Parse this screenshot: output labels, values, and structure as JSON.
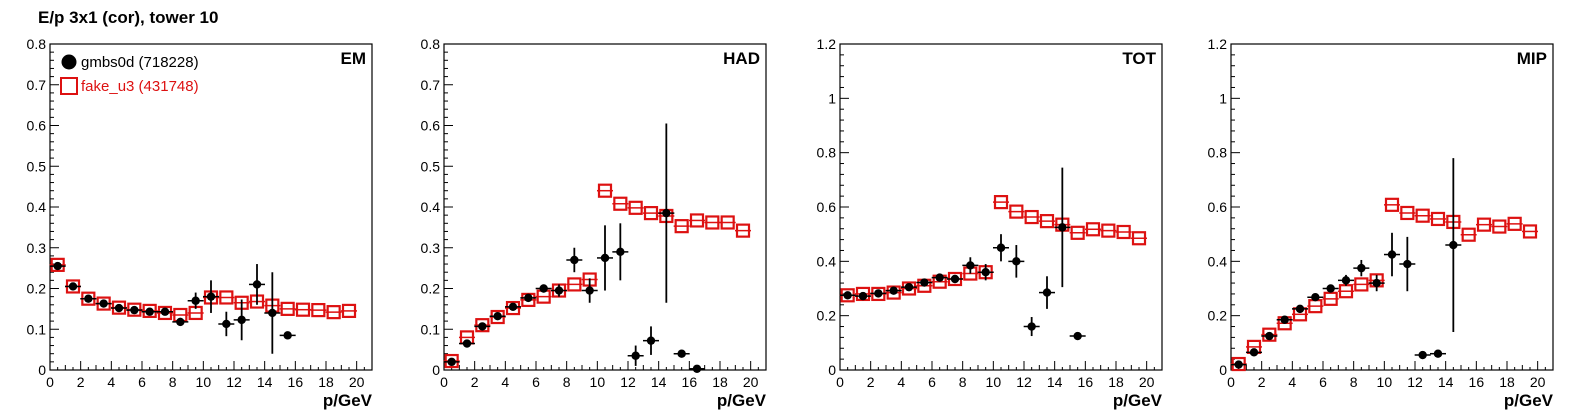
{
  "page": {
    "title": "E/p 3x1 (cor), tower 10"
  },
  "colors": {
    "data": "#000000",
    "mc": "#dd1111",
    "axis": "#000000"
  },
  "legend": [
    {
      "label": "gmbs0d (718228)",
      "color": "#000000",
      "marker": "filled-circle"
    },
    {
      "label": "fake_u3 (431748)",
      "color": "#dd1111",
      "marker": "open-square"
    }
  ],
  "chart_data": [
    {
      "type": "scatter",
      "label": "EM",
      "xlabel": "p/GeV",
      "ylabel": "",
      "xlim": [
        0,
        21
      ],
      "ylim": [
        0,
        0.8
      ],
      "xticks": [
        0,
        2,
        4,
        6,
        8,
        10,
        12,
        14,
        16,
        18,
        20
      ],
      "yticks": [
        0,
        0.1,
        0.2,
        0.3,
        0.4,
        0.5,
        0.6,
        0.7,
        0.8
      ],
      "ytick_labels": [
        "0",
        "0.1",
        "0.2",
        "0.3",
        "0.4",
        "0.5",
        "0.6",
        "0.7",
        "0.8"
      ],
      "series": [
        {
          "name": "gmbs0d (718228)",
          "marker": "filled-circle",
          "points": [
            {
              "x": 0.5,
              "y": 0.255,
              "err": 0.005
            },
            {
              "x": 1.5,
              "y": 0.205,
              "err": 0.005
            },
            {
              "x": 2.5,
              "y": 0.175,
              "err": 0.005
            },
            {
              "x": 3.5,
              "y": 0.163,
              "err": 0.005
            },
            {
              "x": 4.5,
              "y": 0.152,
              "err": 0.005
            },
            {
              "x": 5.5,
              "y": 0.147,
              "err": 0.006
            },
            {
              "x": 6.5,
              "y": 0.143,
              "err": 0.006
            },
            {
              "x": 7.5,
              "y": 0.143,
              "err": 0.008
            },
            {
              "x": 8.5,
              "y": 0.118,
              "err": 0.01
            },
            {
              "x": 9.5,
              "y": 0.17,
              "err": 0.02
            },
            {
              "x": 10.5,
              "y": 0.18,
              "err": 0.04
            },
            {
              "x": 11.5,
              "y": 0.113,
              "err": 0.03
            },
            {
              "x": 12.5,
              "y": 0.123,
              "err": 0.05
            },
            {
              "x": 13.5,
              "y": 0.21,
              "err": 0.05
            },
            {
              "x": 14.5,
              "y": 0.14,
              "err": 0.1
            },
            {
              "x": 15.5,
              "y": 0.085,
              "err": 0.005
            }
          ]
        },
        {
          "name": "fake_u3 (431748)",
          "marker": "open-square",
          "points": [
            {
              "x": 0.5,
              "y": 0.258
            },
            {
              "x": 1.5,
              "y": 0.205
            },
            {
              "x": 2.5,
              "y": 0.175
            },
            {
              "x": 3.5,
              "y": 0.163
            },
            {
              "x": 4.5,
              "y": 0.153
            },
            {
              "x": 5.5,
              "y": 0.148
            },
            {
              "x": 6.5,
              "y": 0.145
            },
            {
              "x": 7.5,
              "y": 0.14
            },
            {
              "x": 8.5,
              "y": 0.135
            },
            {
              "x": 9.5,
              "y": 0.14
            },
            {
              "x": 10.5,
              "y": 0.178
            },
            {
              "x": 11.5,
              "y": 0.178
            },
            {
              "x": 12.5,
              "y": 0.165
            },
            {
              "x": 13.5,
              "y": 0.168
            },
            {
              "x": 14.5,
              "y": 0.158
            },
            {
              "x": 15.5,
              "y": 0.15
            },
            {
              "x": 16.5,
              "y": 0.148
            },
            {
              "x": 17.5,
              "y": 0.147
            },
            {
              "x": 18.5,
              "y": 0.142
            },
            {
              "x": 19.5,
              "y": 0.145
            }
          ]
        }
      ]
    },
    {
      "type": "scatter",
      "label": "HAD",
      "xlabel": "p/GeV",
      "ylabel": "",
      "xlim": [
        0,
        21
      ],
      "ylim": [
        0,
        0.8
      ],
      "xticks": [
        0,
        2,
        4,
        6,
        8,
        10,
        12,
        14,
        16,
        18,
        20
      ],
      "yticks": [
        0,
        0.1,
        0.2,
        0.3,
        0.4,
        0.5,
        0.6,
        0.7,
        0.8
      ],
      "ytick_labels": [
        "0",
        "0.1",
        "0.2",
        "0.3",
        "0.4",
        "0.5",
        "0.6",
        "0.7",
        "0.8"
      ],
      "series": [
        {
          "name": "gmbs0d (718228)",
          "marker": "filled-circle",
          "points": [
            {
              "x": 0.5,
              "y": 0.02,
              "err": 0.004
            },
            {
              "x": 1.5,
              "y": 0.065,
              "err": 0.005
            },
            {
              "x": 2.5,
              "y": 0.107,
              "err": 0.005
            },
            {
              "x": 3.5,
              "y": 0.132,
              "err": 0.005
            },
            {
              "x": 4.5,
              "y": 0.155,
              "err": 0.006
            },
            {
              "x": 5.5,
              "y": 0.177,
              "err": 0.007
            },
            {
              "x": 6.5,
              "y": 0.2,
              "err": 0.01
            },
            {
              "x": 7.5,
              "y": 0.195,
              "err": 0.015
            },
            {
              "x": 8.5,
              "y": 0.27,
              "err": 0.03
            },
            {
              "x": 9.5,
              "y": 0.195,
              "err": 0.03
            },
            {
              "x": 10.5,
              "y": 0.275,
              "err": 0.08
            },
            {
              "x": 11.5,
              "y": 0.29,
              "err": 0.07
            },
            {
              "x": 12.5,
              "y": 0.035,
              "err": 0.025
            },
            {
              "x": 13.5,
              "y": 0.072,
              "err": 0.035
            },
            {
              "x": 14.5,
              "y": 0.385,
              "err": 0.22
            },
            {
              "x": 15.5,
              "y": 0.04,
              "err": 0.004
            },
            {
              "x": 16.5,
              "y": 0.003,
              "err": 0.003
            }
          ]
        },
        {
          "name": "fake_u3 (431748)",
          "marker": "open-square",
          "points": [
            {
              "x": 0.5,
              "y": 0.022
            },
            {
              "x": 1.5,
              "y": 0.08
            },
            {
              "x": 2.5,
              "y": 0.11
            },
            {
              "x": 3.5,
              "y": 0.13
            },
            {
              "x": 4.5,
              "y": 0.152
            },
            {
              "x": 5.5,
              "y": 0.172
            },
            {
              "x": 6.5,
              "y": 0.18
            },
            {
              "x": 7.5,
              "y": 0.195
            },
            {
              "x": 8.5,
              "y": 0.21
            },
            {
              "x": 9.5,
              "y": 0.222
            },
            {
              "x": 10.5,
              "y": 0.44
            },
            {
              "x": 11.5,
              "y": 0.408
            },
            {
              "x": 12.5,
              "y": 0.398
            },
            {
              "x": 13.5,
              "y": 0.385
            },
            {
              "x": 14.5,
              "y": 0.378
            },
            {
              "x": 15.5,
              "y": 0.353
            },
            {
              "x": 16.5,
              "y": 0.367
            },
            {
              "x": 17.5,
              "y": 0.362
            },
            {
              "x": 18.5,
              "y": 0.362
            },
            {
              "x": 19.5,
              "y": 0.342
            }
          ]
        }
      ]
    },
    {
      "type": "scatter",
      "label": "TOT",
      "xlabel": "p/GeV",
      "ylabel": "",
      "xlim": [
        0,
        21
      ],
      "ylim": [
        0,
        1.2
      ],
      "xticks": [
        0,
        2,
        4,
        6,
        8,
        10,
        12,
        14,
        16,
        18,
        20
      ],
      "yticks": [
        0,
        0.2,
        0.4,
        0.6,
        0.8,
        1.0,
        1.2
      ],
      "ytick_labels": [
        "0",
        "0.2",
        "0.4",
        "0.6",
        "0.8",
        "1",
        "1.2"
      ],
      "series": [
        {
          "name": "gmbs0d (718228)",
          "marker": "filled-circle",
          "points": [
            {
              "x": 0.5,
              "y": 0.275,
              "err": 0.005
            },
            {
              "x": 1.5,
              "y": 0.272,
              "err": 0.005
            },
            {
              "x": 2.5,
              "y": 0.282,
              "err": 0.005
            },
            {
              "x": 3.5,
              "y": 0.292,
              "err": 0.006
            },
            {
              "x": 4.5,
              "y": 0.305,
              "err": 0.006
            },
            {
              "x": 5.5,
              "y": 0.322,
              "err": 0.007
            },
            {
              "x": 6.5,
              "y": 0.34,
              "err": 0.01
            },
            {
              "x": 7.5,
              "y": 0.335,
              "err": 0.015
            },
            {
              "x": 8.5,
              "y": 0.385,
              "err": 0.03
            },
            {
              "x": 9.5,
              "y": 0.36,
              "err": 0.03
            },
            {
              "x": 10.5,
              "y": 0.45,
              "err": 0.05
            },
            {
              "x": 11.5,
              "y": 0.4,
              "err": 0.06
            },
            {
              "x": 12.5,
              "y": 0.16,
              "err": 0.035
            },
            {
              "x": 13.5,
              "y": 0.285,
              "err": 0.06
            },
            {
              "x": 14.5,
              "y": 0.525,
              "err": 0.22
            },
            {
              "x": 15.5,
              "y": 0.125,
              "err": 0.005
            }
          ]
        },
        {
          "name": "fake_u3 (431748)",
          "marker": "open-square",
          "points": [
            {
              "x": 0.5,
              "y": 0.275
            },
            {
              "x": 1.5,
              "y": 0.28
            },
            {
              "x": 2.5,
              "y": 0.28
            },
            {
              "x": 3.5,
              "y": 0.285
            },
            {
              "x": 4.5,
              "y": 0.3
            },
            {
              "x": 5.5,
              "y": 0.31
            },
            {
              "x": 6.5,
              "y": 0.325
            },
            {
              "x": 7.5,
              "y": 0.335
            },
            {
              "x": 8.5,
              "y": 0.355
            },
            {
              "x": 9.5,
              "y": 0.36
            },
            {
              "x": 10.5,
              "y": 0.618
            },
            {
              "x": 11.5,
              "y": 0.583
            },
            {
              "x": 12.5,
              "y": 0.563
            },
            {
              "x": 13.5,
              "y": 0.548
            },
            {
              "x": 14.5,
              "y": 0.535
            },
            {
              "x": 15.5,
              "y": 0.505
            },
            {
              "x": 16.5,
              "y": 0.518
            },
            {
              "x": 17.5,
              "y": 0.513
            },
            {
              "x": 18.5,
              "y": 0.508
            },
            {
              "x": 19.5,
              "y": 0.485
            }
          ]
        }
      ]
    },
    {
      "type": "scatter",
      "label": "MIP",
      "xlabel": "p/GeV",
      "ylabel": "",
      "xlim": [
        0,
        21
      ],
      "ylim": [
        0,
        1.2
      ],
      "xticks": [
        0,
        2,
        4,
        6,
        8,
        10,
        12,
        14,
        16,
        18,
        20
      ],
      "yticks": [
        0,
        0.2,
        0.4,
        0.6,
        0.8,
        1.0,
        1.2
      ],
      "ytick_labels": [
        "0",
        "0.2",
        "0.4",
        "0.6",
        "0.8",
        "1",
        "1.2"
      ],
      "series": [
        {
          "name": "gmbs0d (718228)",
          "marker": "filled-circle",
          "points": [
            {
              "x": 0.5,
              "y": 0.02,
              "err": 0.004
            },
            {
              "x": 1.5,
              "y": 0.065,
              "err": 0.005
            },
            {
              "x": 2.5,
              "y": 0.125,
              "err": 0.005
            },
            {
              "x": 3.5,
              "y": 0.185,
              "err": 0.006
            },
            {
              "x": 4.5,
              "y": 0.225,
              "err": 0.006
            },
            {
              "x": 5.5,
              "y": 0.268,
              "err": 0.007
            },
            {
              "x": 6.5,
              "y": 0.3,
              "err": 0.01
            },
            {
              "x": 7.5,
              "y": 0.33,
              "err": 0.02
            },
            {
              "x": 8.5,
              "y": 0.375,
              "err": 0.03
            },
            {
              "x": 9.5,
              "y": 0.32,
              "err": 0.03
            },
            {
              "x": 10.5,
              "y": 0.425,
              "err": 0.08
            },
            {
              "x": 11.5,
              "y": 0.39,
              "err": 0.1
            },
            {
              "x": 12.5,
              "y": 0.055,
              "err": 0.005
            },
            {
              "x": 13.5,
              "y": 0.06,
              "err": 0.005
            },
            {
              "x": 14.5,
              "y": 0.46,
              "err": 0.32
            }
          ]
        },
        {
          "name": "fake_u3 (431748)",
          "marker": "open-square",
          "points": [
            {
              "x": 0.5,
              "y": 0.022
            },
            {
              "x": 1.5,
              "y": 0.085
            },
            {
              "x": 2.5,
              "y": 0.13
            },
            {
              "x": 3.5,
              "y": 0.172
            },
            {
              "x": 4.5,
              "y": 0.205
            },
            {
              "x": 5.5,
              "y": 0.235
            },
            {
              "x": 6.5,
              "y": 0.262
            },
            {
              "x": 7.5,
              "y": 0.29
            },
            {
              "x": 8.5,
              "y": 0.315
            },
            {
              "x": 9.5,
              "y": 0.33
            },
            {
              "x": 10.5,
              "y": 0.608
            },
            {
              "x": 11.5,
              "y": 0.578
            },
            {
              "x": 12.5,
              "y": 0.568
            },
            {
              "x": 13.5,
              "y": 0.556
            },
            {
              "x": 14.5,
              "y": 0.545
            },
            {
              "x": 15.5,
              "y": 0.498
            },
            {
              "x": 16.5,
              "y": 0.535
            },
            {
              "x": 17.5,
              "y": 0.528
            },
            {
              "x": 18.5,
              "y": 0.538
            },
            {
              "x": 19.5,
              "y": 0.51
            }
          ]
        }
      ]
    }
  ]
}
